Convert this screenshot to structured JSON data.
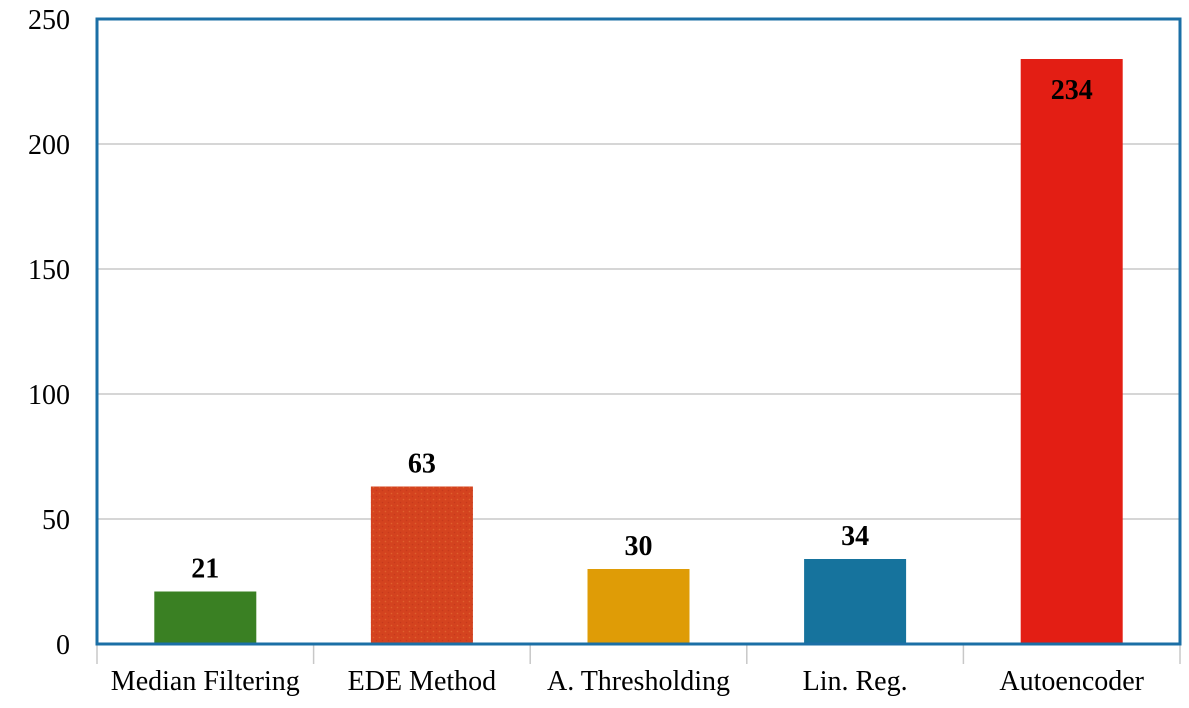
{
  "chart_data": {
    "type": "bar",
    "title": "",
    "xlabel": "",
    "ylabel": "",
    "categories": [
      "Median Filtering",
      "EDE Method",
      "A. Thresholding",
      "Lin. Reg.",
      "Autoencoder"
    ],
    "values": [
      21,
      63,
      30,
      34,
      234
    ],
    "data_labels": [
      "21",
      "63",
      "30",
      "34",
      "234"
    ],
    "colors": [
      "#3a8023",
      "#d4431f",
      "#df9c06",
      "#16739d",
      "#e31e14"
    ],
    "ylim": [
      0,
      250
    ],
    "yticks": [
      "0",
      "50",
      "100",
      "150",
      "200",
      "250"
    ],
    "grid": true,
    "legend": "none",
    "frame_color": "#1b6fa6",
    "grid_color": "#c8c8c8"
  }
}
